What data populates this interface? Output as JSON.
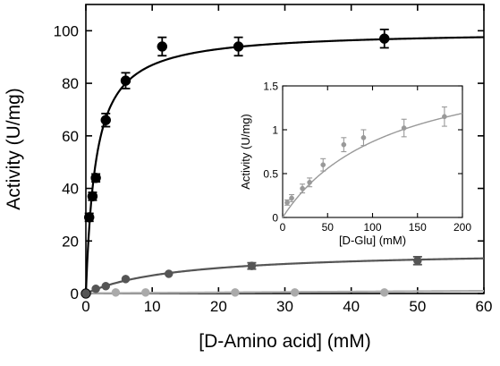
{
  "chart_data": [
    {
      "type": "scatter",
      "title": "",
      "xlabel": "[D-Amino acid] (mM)",
      "ylabel": "Activity (U/mg)",
      "xlim": [
        0,
        60
      ],
      "ylim": [
        0,
        110
      ],
      "xticks": [
        0,
        10,
        20,
        30,
        40,
        50,
        60
      ],
      "yticks": [
        0,
        20,
        40,
        60,
        80,
        100
      ],
      "grid": false,
      "legend": "none",
      "series": [
        {
          "color": "#000000",
          "marker_size": "large",
          "x": [
            0,
            0.5,
            1,
            1.5,
            3,
            6,
            11.5,
            23,
            45
          ],
          "y": [
            0,
            29,
            37,
            44,
            66,
            81,
            94,
            94,
            97
          ],
          "err": [
            0,
            1.5,
            1.5,
            1.5,
            2.5,
            3,
            3.5,
            3.5,
            3.5
          ],
          "fit": {
            "model": "michaelis-menten",
            "vmax": 100,
            "km": 1.5
          }
        },
        {
          "color": "#555555",
          "marker_size": "medium",
          "x": [
            0,
            1.5,
            3,
            6,
            12.5,
            25,
            50
          ],
          "y": [
            0,
            1.8,
            2.8,
            5.5,
            7.5,
            10.5,
            12.5
          ],
          "err": [
            0,
            0,
            0,
            0,
            0,
            1.2,
            1.5
          ],
          "fit": {
            "model": "michaelis-menten",
            "vmax": 16.5,
            "km": 14
          }
        },
        {
          "color": "#aaaaaa",
          "marker_size": "medium",
          "x": [
            4.5,
            9,
            22.5,
            31.5,
            45
          ],
          "y": [
            0.4,
            0.4,
            0.4,
            0.4,
            0.4
          ],
          "err": [
            0,
            0,
            0,
            0,
            0
          ],
          "fit": {
            "model": "linear",
            "y0": 0.1,
            "slope": 0.015
          }
        }
      ]
    },
    {
      "type": "scatter",
      "title": "",
      "xlabel": "[D-Glu] (mM)",
      "ylabel": "Activity (U/mg)",
      "xlim": [
        0,
        200
      ],
      "ylim": [
        0,
        1.5
      ],
      "xticks": [
        0,
        50,
        100,
        150,
        200
      ],
      "yticks": [
        0,
        0.5,
        1,
        1.5
      ],
      "ytick_labels": [
        "0",
        "0.5",
        "1",
        "1.5"
      ],
      "grid": false,
      "legend": "none",
      "series": [
        {
          "color": "#999999",
          "marker_size": "small",
          "x": [
            5,
            10,
            22,
            30,
            45,
            68,
            90,
            135,
            180
          ],
          "y": [
            0.17,
            0.22,
            0.33,
            0.4,
            0.6,
            0.83,
            0.91,
            1.02,
            1.15
          ],
          "err": [
            0.03,
            0.04,
            0.05,
            0.05,
            0.07,
            0.08,
            0.09,
            0.1,
            0.11
          ],
          "fit": {
            "model": "michaelis-menten",
            "vmax": 1.9,
            "km": 120
          }
        }
      ]
    }
  ]
}
